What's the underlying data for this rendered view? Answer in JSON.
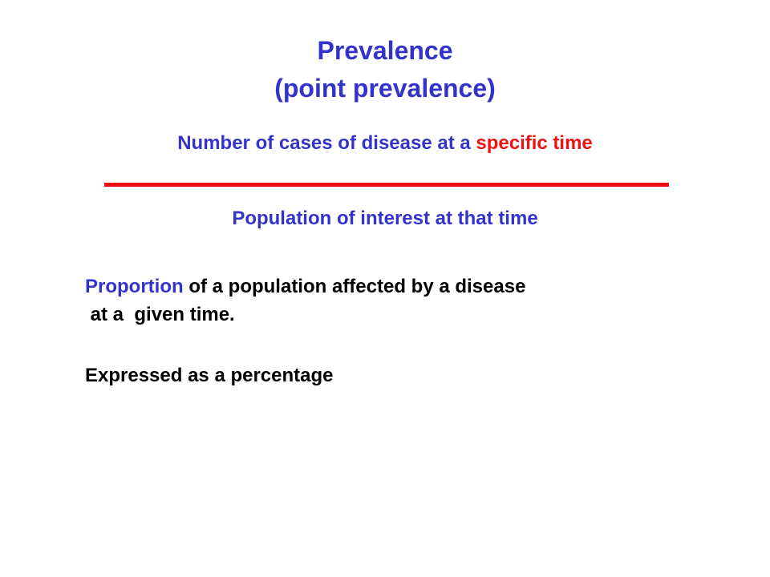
{
  "slide": {
    "title_line1": "Prevalence",
    "title_line2": "(point prevalence)",
    "numerator": {
      "part1": "Number of cases of disease at a ",
      "part2": "specific time"
    },
    "denominator": "Population of interest at that time",
    "definition": {
      "word": "Proportion",
      "rest_line1": " of a population affected by a disease",
      "line2": " at a  given time."
    },
    "note": "Expressed as a percentage"
  },
  "colors": {
    "title": "#3333cc",
    "accent": "#ee1111",
    "body": "#000000"
  }
}
